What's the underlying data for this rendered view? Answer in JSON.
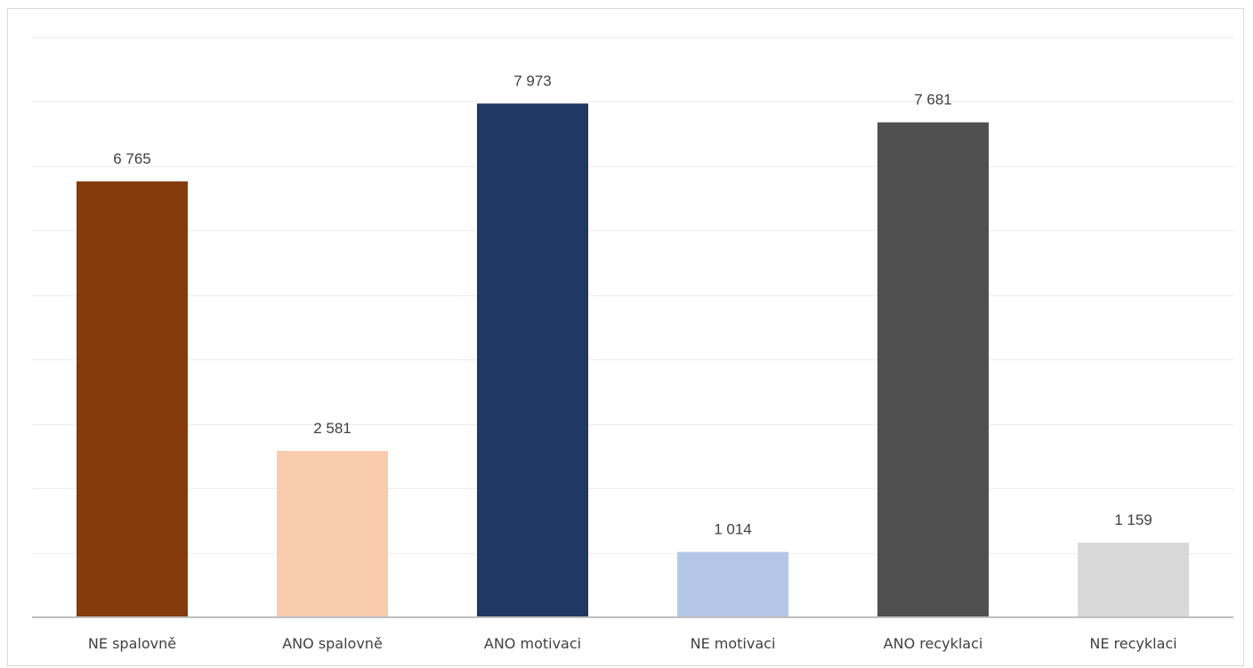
{
  "chart_data": {
    "type": "bar",
    "title": "",
    "xlabel": "",
    "ylabel": "",
    "ylim": [
      0,
      9000
    ],
    "grid": true,
    "y_axis_visible": false,
    "legend": "none",
    "categories": [
      "NE spalovně",
      "ANO spalovně",
      "ANO motivaci",
      "NE motivaci",
      "ANO recyklaci",
      "NE recyklaci"
    ],
    "values": [
      6765,
      2581,
      7973,
      1014,
      7681,
      1159
    ],
    "value_labels": [
      "6 765",
      "2 581",
      "7 973",
      "1 014",
      "7 681",
      "1 159"
    ],
    "colors": [
      "#843c0c",
      "#f8cbad",
      "#1f3864",
      "#b4c7e7",
      "#505050",
      "#d9d9d9"
    ]
  }
}
